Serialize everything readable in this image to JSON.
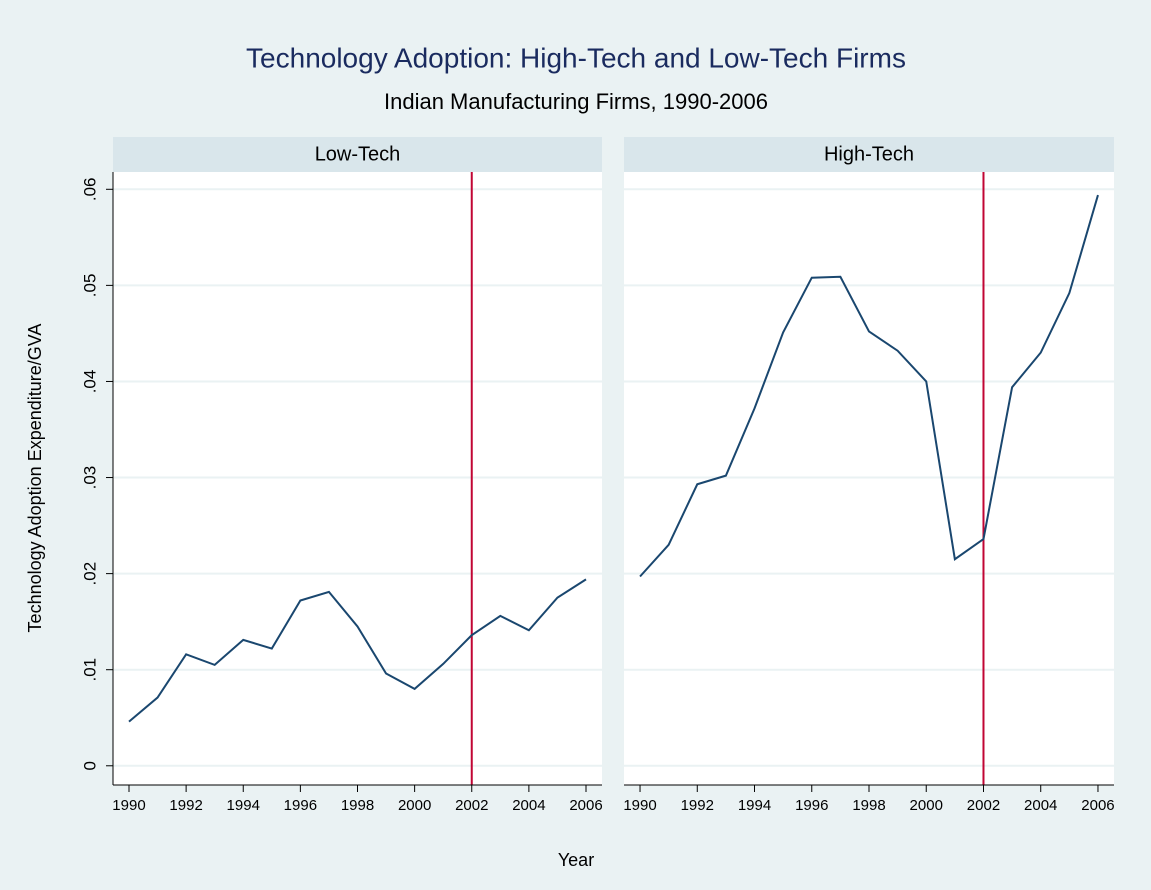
{
  "chart_data": {
    "type": "line",
    "title": "Technology Adoption: High-Tech and Low-Tech Firms",
    "subtitle": "Indian Manufacturing Firms, 1990-2006",
    "x_label": "Year",
    "y_label": "Technology Adoption Expenditure/GVA",
    "x": [
      1990,
      1991,
      1992,
      1993,
      1994,
      1995,
      1996,
      1997,
      1998,
      1999,
      2000,
      2001,
      2002,
      2003,
      2004,
      2005,
      2006
    ],
    "series": [
      {
        "name": "Low-Tech",
        "color": "#1a476f",
        "values": [
          0.0046,
          0.0071,
          0.0116,
          0.0105,
          0.0131,
          0.0122,
          0.0172,
          0.0181,
          0.0145,
          0.0096,
          0.008,
          0.0106,
          0.0136,
          0.0156,
          0.0141,
          0.0175,
          0.0194
        ]
      },
      {
        "name": "High-Tech",
        "color": "#1a476f",
        "values": [
          0.0197,
          0.023,
          0.0293,
          0.0302,
          0.0372,
          0.0451,
          0.0508,
          0.0509,
          0.0452,
          0.0432,
          0.04,
          0.0215,
          0.0236,
          0.0394,
          0.043,
          0.0492,
          0.0594
        ]
      }
    ],
    "reference_line": {
      "x": 2002,
      "color": "#c10534"
    },
    "xlim": [
      1989.44,
      2006.56
    ],
    "xticks": [
      1990,
      1992,
      1994,
      1996,
      1998,
      2000,
      2002,
      2004,
      2006
    ],
    "ylim": [
      -0.002,
      0.0618
    ],
    "yticks": [
      0,
      {
        "value": 0.01,
        "label": ".01"
      },
      {
        "value": 0.02,
        "label": ".02"
      },
      {
        "value": 0.03,
        "label": ".03"
      },
      {
        "value": 0.04,
        "label": ".04"
      },
      {
        "value": 0.05,
        "label": ".05"
      },
      {
        "value": 0.06,
        "label": ".06"
      }
    ],
    "grid": true
  }
}
